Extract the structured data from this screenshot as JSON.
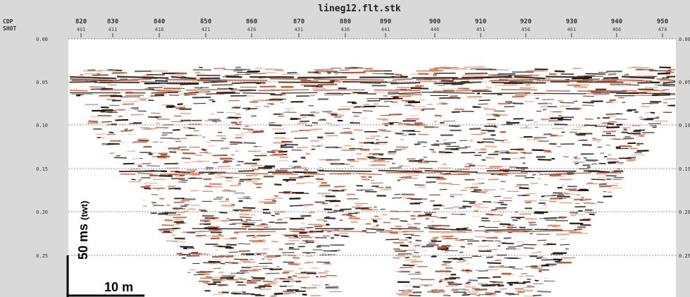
{
  "header": {
    "title": "lineg12.flt.stk",
    "cdp_label": "CDP",
    "shot_label": "SHOT",
    "cdp": [
      "820",
      "830",
      "840",
      "850",
      "860",
      "870",
      "880",
      "890",
      "900",
      "910",
      "920",
      "930",
      "940",
      "950"
    ],
    "shot": [
      "401",
      "411",
      "416",
      "421",
      "426",
      "431",
      "436",
      "441",
      "446",
      "451",
      "456",
      "461",
      "466",
      "474"
    ]
  },
  "time_axis": {
    "labels": [
      "0.00",
      "0.05",
      "0.10",
      "0.15",
      "0.20",
      "0.25"
    ]
  },
  "scale_bar": {
    "vertical": "50 ms",
    "vertical_unit": "(twt)",
    "horizontal": "10 m"
  }
}
